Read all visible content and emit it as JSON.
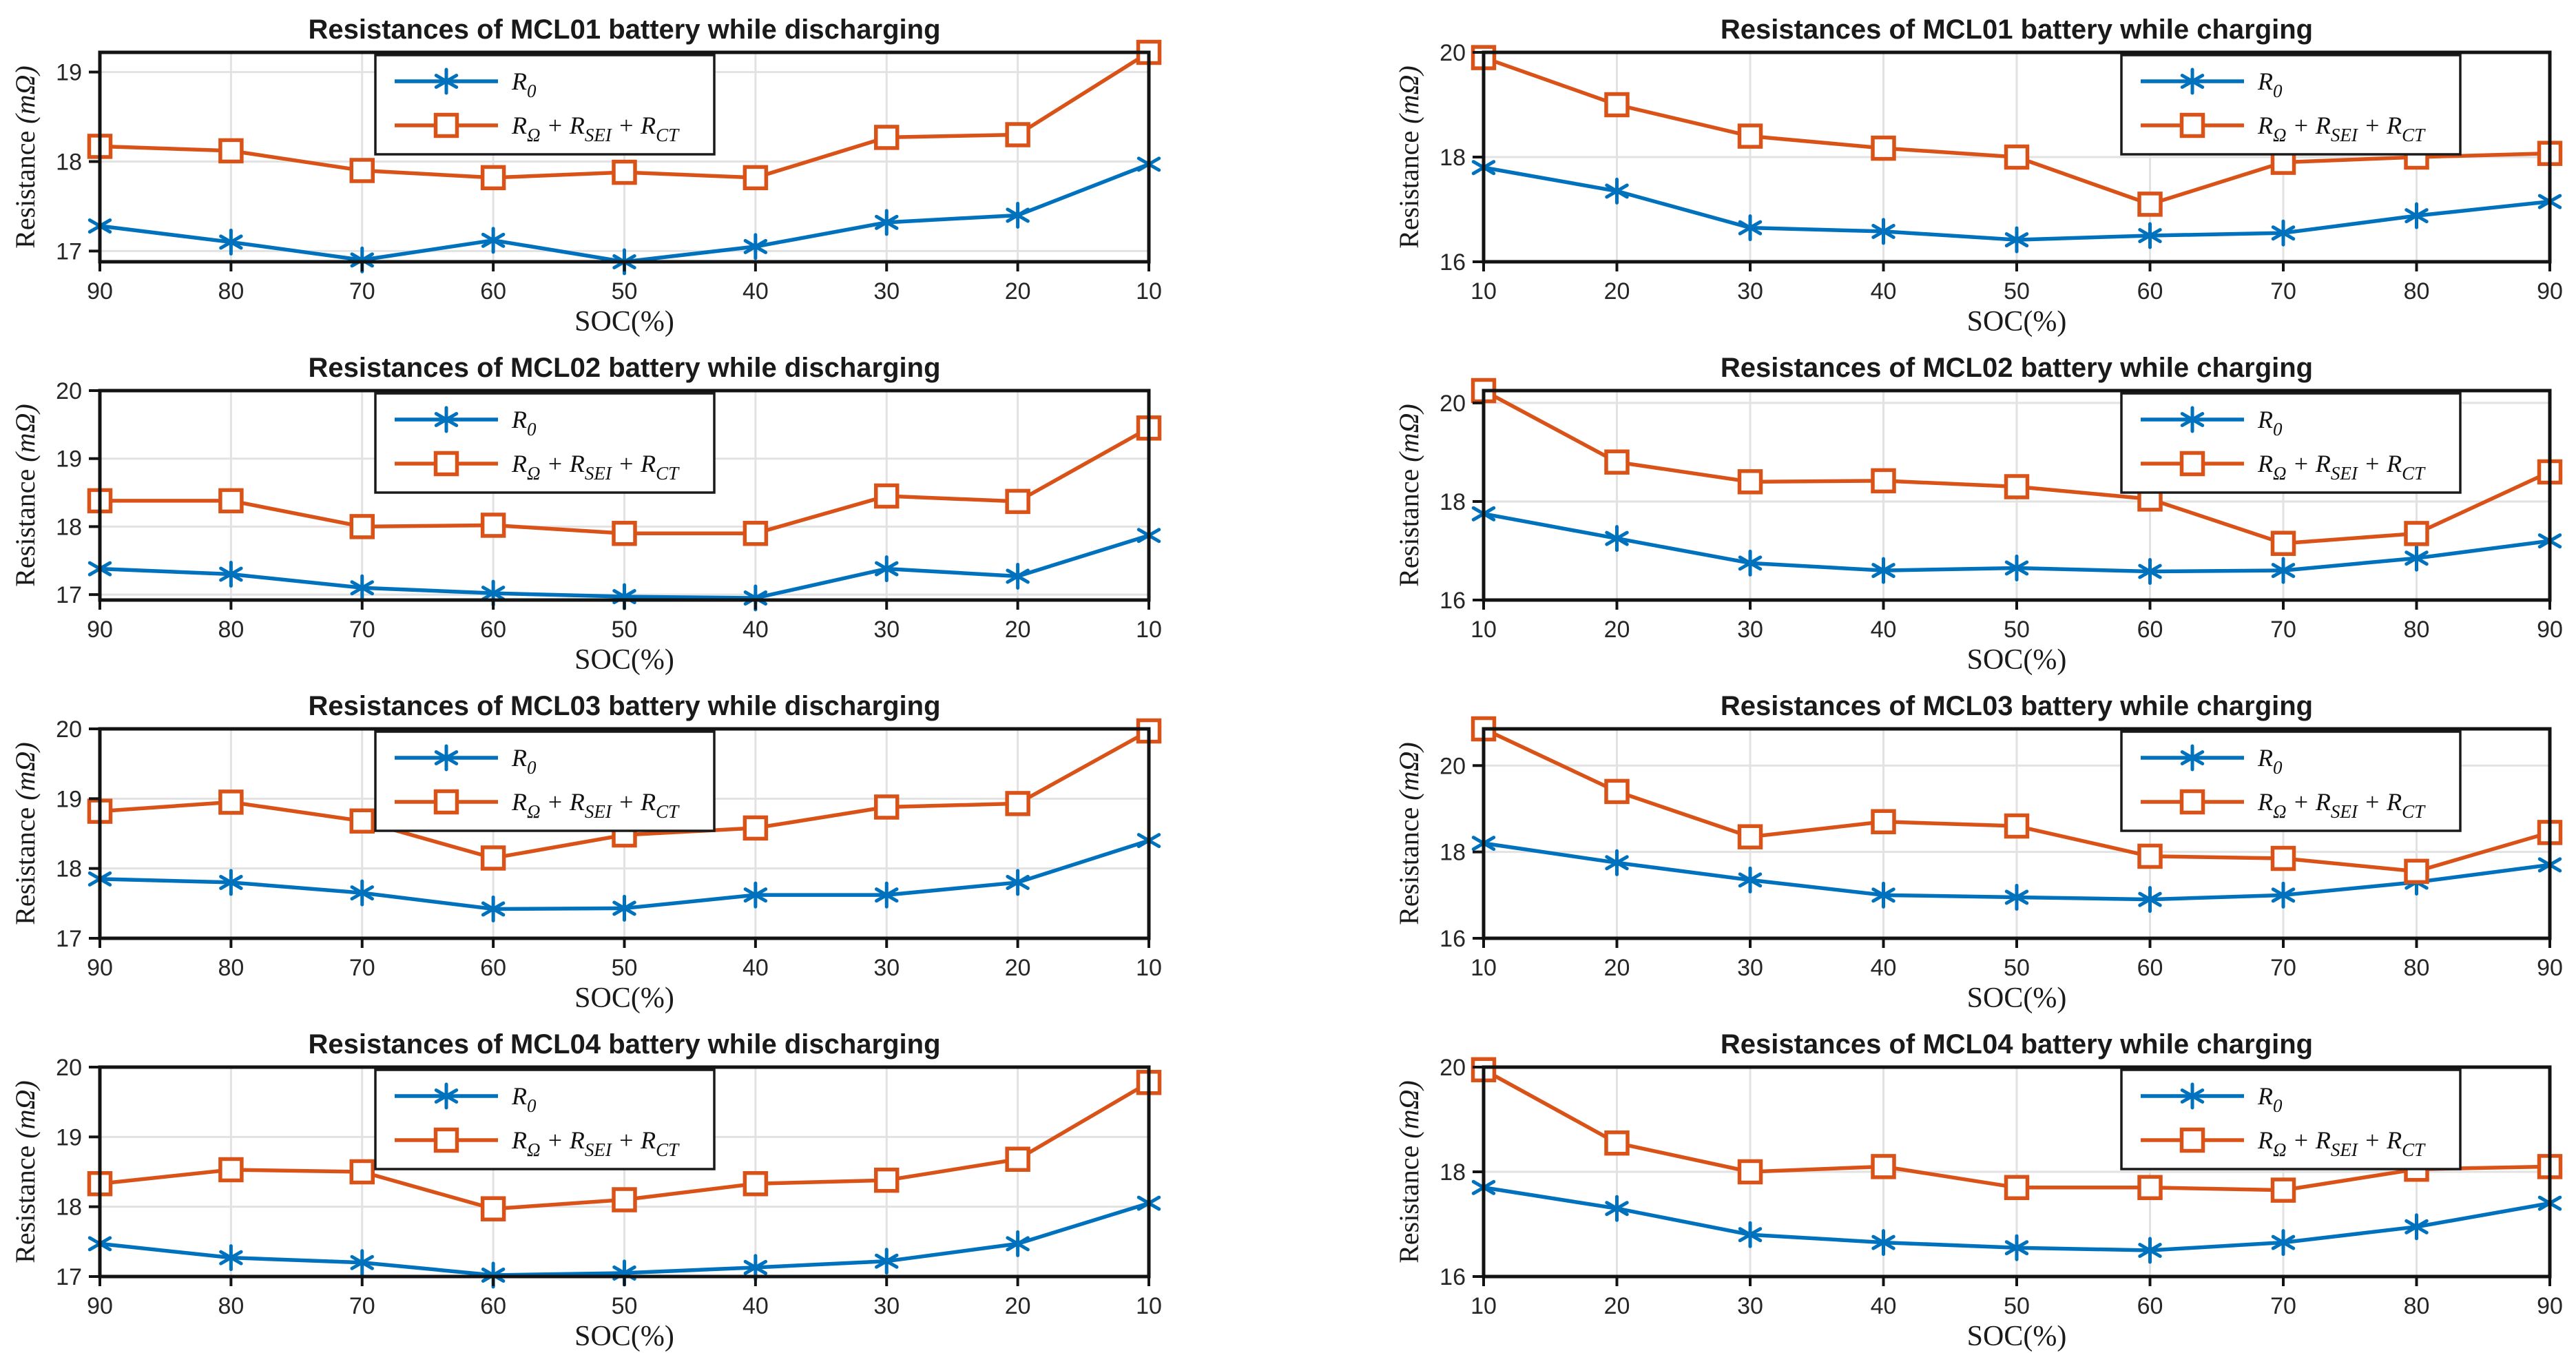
{
  "palette": {
    "r0_color": "#0072BD",
    "rtotal_color": "#D95319",
    "grid_color": "#E2E2E2",
    "frame_color": "#131313",
    "tick_label_color": "#262626",
    "title_color": "#1a1a1a",
    "background": "#ffffff"
  },
  "chart_data": [
    {
      "type": "line",
      "id": "mcl01-discharging",
      "title": "Resistances of MCL01 battery while discharging",
      "xlabel": "SOC(%)",
      "ylabel": "Resistance (mΩ)",
      "x": [
        90,
        80,
        70,
        60,
        50,
        40,
        30,
        20,
        10
      ],
      "yticks": [
        17,
        18,
        19
      ],
      "ylim": [
        16.88,
        19.22
      ],
      "grid": true,
      "legend_position": "upper-left",
      "series": [
        {
          "name": "R_0",
          "marker": "asterisk",
          "color": "#0072BD",
          "values": [
            17.28,
            17.1,
            16.9,
            17.12,
            16.88,
            17.05,
            17.32,
            17.4,
            17.97
          ]
        },
        {
          "name": "R_Ω + R_SEI + R_CT",
          "marker": "square",
          "color": "#D95319",
          "values": [
            18.17,
            18.12,
            17.9,
            17.82,
            17.88,
            17.82,
            18.27,
            18.3,
            19.22
          ]
        }
      ]
    },
    {
      "type": "line",
      "id": "mcl01-charging",
      "title": "Resistances of MCL01 battery while charging",
      "xlabel": "SOC(%)",
      "ylabel": "Resistance (mΩ)",
      "x": [
        10,
        20,
        30,
        40,
        50,
        60,
        70,
        80,
        90
      ],
      "yticks": [
        16,
        18,
        20
      ],
      "ylim": [
        16,
        20
      ],
      "grid": true,
      "legend_position": "upper-right",
      "series": [
        {
          "name": "R_0",
          "marker": "asterisk",
          "color": "#0072BD",
          "values": [
            17.8,
            17.35,
            16.65,
            16.58,
            16.42,
            16.5,
            16.55,
            16.88,
            17.15
          ]
        },
        {
          "name": "R_Ω + R_SEI + R_CT",
          "marker": "square",
          "color": "#D95319",
          "values": [
            19.9,
            19.0,
            18.4,
            18.17,
            18.0,
            17.1,
            17.9,
            18.0,
            18.07
          ]
        }
      ]
    },
    {
      "type": "line",
      "id": "mcl02-discharging",
      "title": "Resistances of MCL02 battery while discharging",
      "xlabel": "SOC(%)",
      "ylabel": "Resistance (mΩ)",
      "x": [
        90,
        80,
        70,
        60,
        50,
        40,
        30,
        20,
        10
      ],
      "yticks": [
        17,
        18,
        19,
        20
      ],
      "ylim": [
        16.92,
        20
      ],
      "grid": true,
      "legend_position": "upper-left",
      "series": [
        {
          "name": "R_0",
          "marker": "asterisk",
          "color": "#0072BD",
          "values": [
            17.38,
            17.3,
            17.1,
            17.02,
            16.97,
            16.95,
            17.38,
            17.27,
            17.87
          ]
        },
        {
          "name": "R_Ω + R_SEI + R_CT",
          "marker": "square",
          "color": "#D95319",
          "values": [
            18.38,
            18.38,
            18.0,
            18.02,
            17.9,
            17.9,
            18.45,
            18.37,
            19.45
          ]
        }
      ]
    },
    {
      "type": "line",
      "id": "mcl02-charging",
      "title": "Resistances of MCL02 battery while charging",
      "xlabel": "SOC(%)",
      "ylabel": "Resistance (mΩ)",
      "x": [
        10,
        20,
        30,
        40,
        50,
        60,
        70,
        80,
        90
      ],
      "yticks": [
        16,
        18,
        20
      ],
      "ylim": [
        16,
        20.25
      ],
      "grid": true,
      "legend_position": "upper-right",
      "series": [
        {
          "name": "R_0",
          "marker": "asterisk",
          "color": "#0072BD",
          "values": [
            17.75,
            17.25,
            16.75,
            16.6,
            16.65,
            16.58,
            16.6,
            16.85,
            17.2
          ]
        },
        {
          "name": "R_Ω + R_SEI + R_CT",
          "marker": "square",
          "color": "#D95319",
          "values": [
            20.25,
            18.8,
            18.4,
            18.42,
            18.3,
            18.05,
            17.15,
            17.35,
            18.6
          ]
        }
      ]
    },
    {
      "type": "line",
      "id": "mcl03-discharging",
      "title": "Resistances of MCL03 battery while discharging",
      "xlabel": "SOC(%)",
      "ylabel": "Resistance (mΩ)",
      "x": [
        90,
        80,
        70,
        60,
        50,
        40,
        30,
        20,
        10
      ],
      "yticks": [
        17,
        18,
        19,
        20
      ],
      "ylim": [
        17,
        20
      ],
      "grid": true,
      "legend_position": "upper-left",
      "series": [
        {
          "name": "R_0",
          "marker": "asterisk",
          "color": "#0072BD",
          "values": [
            17.85,
            17.8,
            17.65,
            17.42,
            17.43,
            17.62,
            17.62,
            17.8,
            18.4
          ]
        },
        {
          "name": "R_Ω + R_SEI + R_CT",
          "marker": "square",
          "color": "#D95319",
          "values": [
            18.82,
            18.95,
            18.68,
            18.15,
            18.48,
            18.58,
            18.88,
            18.93,
            19.97
          ]
        }
      ]
    },
    {
      "type": "line",
      "id": "mcl03-charging",
      "title": "Resistances of MCL03 battery while charging",
      "xlabel": "SOC(%)",
      "ylabel": "Resistance (mΩ)",
      "x": [
        10,
        20,
        30,
        40,
        50,
        60,
        70,
        80,
        90
      ],
      "yticks": [
        16,
        18,
        20
      ],
      "ylim": [
        16,
        20.85
      ],
      "grid": true,
      "legend_position": "upper-right",
      "series": [
        {
          "name": "R_0",
          "marker": "asterisk",
          "color": "#0072BD",
          "values": [
            18.2,
            17.75,
            17.35,
            17.0,
            16.95,
            16.9,
            17.0,
            17.3,
            17.7
          ]
        },
        {
          "name": "R_Ω + R_SEI + R_CT",
          "marker": "square",
          "color": "#D95319",
          "values": [
            20.85,
            19.4,
            18.35,
            18.7,
            18.6,
            17.9,
            17.85,
            17.55,
            18.45
          ]
        }
      ]
    },
    {
      "type": "line",
      "id": "mcl04-discharging",
      "title": "Resistances of MCL04 battery while discharging",
      "xlabel": "SOC(%)",
      "ylabel": "Resistance (mΩ)",
      "x": [
        90,
        80,
        70,
        60,
        50,
        40,
        30,
        20,
        10
      ],
      "yticks": [
        17,
        18,
        19,
        20
      ],
      "ylim": [
        17,
        20
      ],
      "grid": true,
      "legend_position": "upper-left",
      "series": [
        {
          "name": "R_0",
          "marker": "asterisk",
          "color": "#0072BD",
          "values": [
            17.47,
            17.27,
            17.2,
            17.02,
            17.05,
            17.13,
            17.22,
            17.47,
            18.05
          ]
        },
        {
          "name": "R_Ω + R_SEI + R_CT",
          "marker": "square",
          "color": "#D95319",
          "values": [
            18.33,
            18.53,
            18.5,
            17.97,
            18.1,
            18.33,
            18.38,
            18.68,
            19.78
          ]
        }
      ]
    },
    {
      "type": "line",
      "id": "mcl04-charging",
      "title": "Resistances of MCL04 battery while charging",
      "xlabel": "SOC(%)",
      "ylabel": "Resistance (mΩ)",
      "x": [
        10,
        20,
        30,
        40,
        50,
        60,
        70,
        80,
        90
      ],
      "yticks": [
        16,
        18,
        20
      ],
      "ylim": [
        16,
        20
      ],
      "grid": true,
      "legend_position": "upper-right",
      "series": [
        {
          "name": "R_0",
          "marker": "asterisk",
          "color": "#0072BD",
          "values": [
            17.7,
            17.3,
            16.8,
            16.65,
            16.55,
            16.5,
            16.65,
            16.95,
            17.4
          ]
        },
        {
          "name": "R_Ω + R_SEI + R_CT",
          "marker": "square",
          "color": "#D95319",
          "values": [
            19.95,
            18.55,
            18.0,
            18.1,
            17.7,
            17.7,
            17.65,
            18.05,
            18.1
          ]
        }
      ]
    }
  ]
}
